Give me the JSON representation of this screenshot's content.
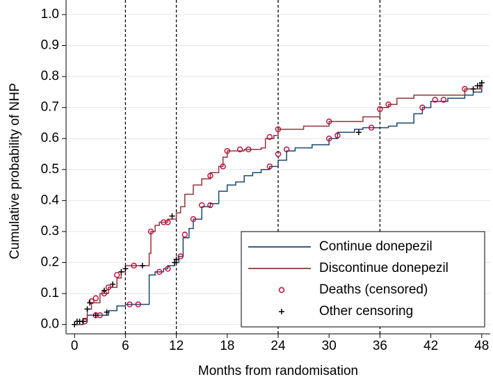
{
  "chart_data": {
    "type": "step",
    "x_label": "Months from randomisation",
    "y_label": "Cumulative probability of NHP",
    "xlim": [
      -1,
      49
    ],
    "ylim": [
      -0.03,
      1.02
    ],
    "xticks": [
      0,
      6,
      12,
      18,
      24,
      30,
      36,
      42,
      48
    ],
    "yticks": [
      {
        "value": 0,
        "label": "0.0"
      },
      0.1,
      0.2,
      0.3,
      0.4,
      0.5,
      0.6,
      0.7,
      0.8,
      0.9,
      {
        "value": 1,
        "label": "1.0"
      }
    ],
    "vlines": [
      6,
      12,
      24,
      36
    ],
    "grid": true,
    "legend": "lower right",
    "series": [
      {
        "name": "Continue donepezil",
        "color": "#1a476f",
        "x": [
          0,
          1,
          1.5,
          3,
          4,
          5,
          6,
          8.8,
          9.5,
          10.5,
          11,
          11.8,
          12.3,
          12.8,
          13.5,
          14,
          15,
          16,
          17,
          18,
          19,
          20,
          21,
          22,
          23,
          24,
          25,
          26,
          28,
          30,
          31,
          33,
          34,
          37,
          38,
          40,
          41,
          42,
          44,
          46,
          47,
          48
        ],
        "values": [
          0,
          0.01,
          0.03,
          0.03,
          0.045,
          0.06,
          0.065,
          0.16,
          0.17,
          0.18,
          0.19,
          0.2,
          0.22,
          0.28,
          0.31,
          0.34,
          0.38,
          0.39,
          0.43,
          0.45,
          0.46,
          0.48,
          0.49,
          0.5,
          0.51,
          0.53,
          0.56,
          0.57,
          0.58,
          0.6,
          0.62,
          0.63,
          0.635,
          0.64,
          0.65,
          0.68,
          0.7,
          0.72,
          0.73,
          0.74,
          0.75,
          0.77
        ]
      },
      {
        "name": "Discontinue donepezil",
        "color": "#90353b",
        "x": [
          0,
          1,
          1.5,
          2,
          3,
          4,
          5,
          5.5,
          6,
          8.8,
          9,
          9.5,
          10,
          11,
          12,
          12.5,
          13,
          14,
          15,
          16,
          17,
          17.5,
          18,
          20,
          22,
          22.5,
          23.5,
          24,
          27,
          30,
          34,
          36,
          37,
          38,
          40,
          46,
          48
        ],
        "values": [
          0,
          0.02,
          0.05,
          0.07,
          0.1,
          0.12,
          0.15,
          0.17,
          0.19,
          0.23,
          0.3,
          0.32,
          0.33,
          0.34,
          0.36,
          0.38,
          0.42,
          0.45,
          0.47,
          0.49,
          0.51,
          0.54,
          0.56,
          0.565,
          0.57,
          0.6,
          0.61,
          0.63,
          0.64,
          0.655,
          0.67,
          0.7,
          0.71,
          0.73,
          0.74,
          0.76,
          0.77
        ]
      },
      {
        "name": "Deaths (censored)",
        "color": "#c10534",
        "marker": "circle",
        "x": [
          1.2,
          2,
          2.5,
          2.5,
          3,
          3.5,
          4,
          5,
          6.5,
          7,
          7.5,
          9,
          10,
          10.5,
          11,
          11,
          12.5,
          13,
          14,
          15,
          16,
          16,
          17.5,
          18,
          19.5,
          20.5,
          23,
          23,
          24,
          24,
          25,
          30,
          30,
          31,
          35,
          36,
          37,
          41,
          42.5,
          43.5,
          46
        ],
        "values": [
          0.01,
          0.075,
          0.085,
          0.03,
          0.03,
          0.1,
          0.12,
          0.16,
          0.065,
          0.19,
          0.065,
          0.3,
          0.17,
          0.33,
          0.33,
          0.18,
          0.22,
          0.29,
          0.34,
          0.385,
          0.385,
          0.48,
          0.51,
          0.56,
          0.565,
          0.565,
          0.51,
          0.605,
          0.55,
          0.63,
          0.565,
          0.655,
          0.6,
          0.61,
          0.635,
          0.695,
          0.71,
          0.7,
          0.725,
          0.725,
          0.76
        ]
      },
      {
        "name": "Other censoring",
        "color": "#000000",
        "marker": "plus",
        "x": [
          0,
          0.3,
          0.6,
          1,
          1.5,
          1.8,
          2.5,
          3.5,
          3.8,
          4.5,
          5.5,
          6,
          8,
          11.5,
          11.8,
          12,
          33.5,
          47,
          47.5,
          47.8,
          48
        ],
        "values": [
          0,
          0.01,
          0.01,
          0.01,
          0.05,
          0.07,
          0.03,
          0.11,
          0.04,
          0.13,
          0.17,
          0.18,
          0.19,
          0.35,
          0.2,
          0.21,
          0.62,
          0.76,
          0.77,
          0.77,
          0.78
        ]
      }
    ]
  }
}
